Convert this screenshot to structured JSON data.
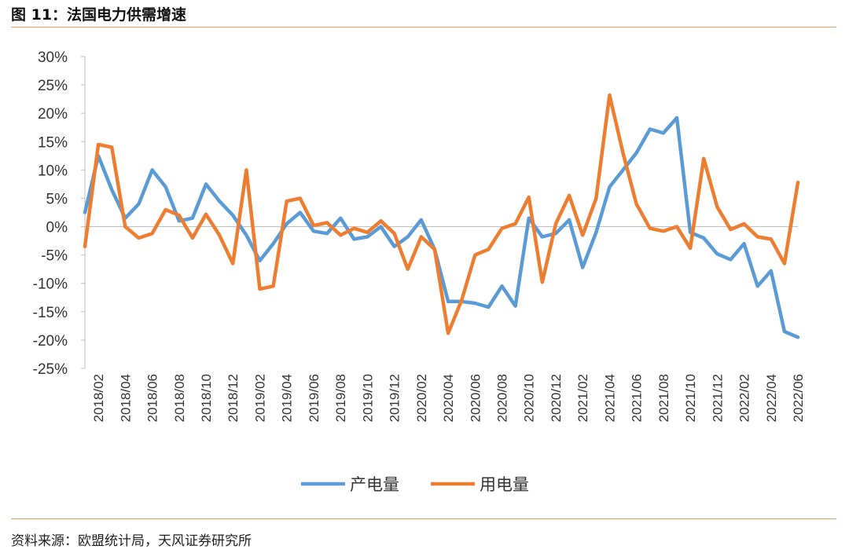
{
  "header": {
    "title": "图 11：法国电力供需增速"
  },
  "footer": {
    "source": "资料来源：欧盟统计局，天风证券研究所"
  },
  "colors": {
    "accent_rule": "#e8a060"
  },
  "chart_data": {
    "type": "line",
    "title": "",
    "xlabel": "",
    "ylabel": "",
    "ylim": [
      -25,
      30
    ],
    "y_ticks": [
      30,
      25,
      20,
      15,
      10,
      5,
      0,
      -5,
      -10,
      -15,
      -20,
      -25
    ],
    "y_tick_labels": [
      "30%",
      "25%",
      "20%",
      "15%",
      "10%",
      "5%",
      "0%",
      "-5%",
      "-10%",
      "-15%",
      "-20%",
      "-25%"
    ],
    "grid": false,
    "legend_position": "bottom",
    "x": [
      "2018/01",
      "2018/02",
      "2018/03",
      "2018/04",
      "2018/05",
      "2018/06",
      "2018/07",
      "2018/08",
      "2018/09",
      "2018/10",
      "2018/11",
      "2018/12",
      "2019/01",
      "2019/02",
      "2019/03",
      "2019/04",
      "2019/05",
      "2019/06",
      "2019/07",
      "2019/08",
      "2019/09",
      "2019/10",
      "2019/11",
      "2019/12",
      "2020/01",
      "2020/02",
      "2020/03",
      "2020/04",
      "2020/05",
      "2020/06",
      "2020/07",
      "2020/08",
      "2020/09",
      "2020/10",
      "2020/11",
      "2020/12",
      "2021/01",
      "2021/02",
      "2021/03",
      "2021/04",
      "2021/05",
      "2021/06",
      "2021/07",
      "2021/08",
      "2021/09",
      "2021/10",
      "2021/11",
      "2021/12",
      "2022/01",
      "2022/02",
      "2022/03",
      "2022/04",
      "2022/05",
      "2022/06"
    ],
    "x_tick_labels": [
      "2018/02",
      "2018/04",
      "2018/06",
      "2018/08",
      "2018/10",
      "2018/12",
      "2019/02",
      "2019/04",
      "2019/06",
      "2019/08",
      "2019/10",
      "2019/12",
      "2020/02",
      "2020/04",
      "2020/06",
      "2020/08",
      "2020/10",
      "2020/12",
      "2021/02",
      "2021/04",
      "2021/06",
      "2021/08",
      "2021/10",
      "2021/12",
      "2022/02",
      "2022/04",
      "2022/06"
    ],
    "series": [
      {
        "name": "产电量",
        "color": "#5b9bd5",
        "values": [
          2.5,
          12.5,
          6.5,
          1.5,
          4.0,
          10.0,
          7.0,
          1.0,
          1.5,
          7.5,
          4.5,
          2.0,
          -1.5,
          -6.0,
          -3.0,
          0.5,
          2.5,
          -0.8,
          -1.2,
          1.5,
          -2.2,
          -1.8,
          0.0,
          -3.5,
          -1.8,
          1.2,
          -4.0,
          -13.2,
          -13.2,
          -13.5,
          -14.2,
          -10.5,
          -14.0,
          1.5,
          -1.8,
          -1.2,
          1.2,
          -7.2,
          -1.0,
          7.0,
          10.0,
          13.0,
          17.2,
          16.5,
          19.2,
          -1.0,
          -2.0,
          -4.8,
          -5.8,
          -3.0,
          -10.5,
          -7.8,
          -18.5,
          -19.5
        ]
      },
      {
        "name": "用电量",
        "color": "#ed7d31",
        "values": [
          -3.5,
          14.5,
          14.0,
          0.0,
          -2.0,
          -1.2,
          3.0,
          2.0,
          -2.0,
          2.2,
          -1.5,
          -6.5,
          10.0,
          -11.0,
          -10.5,
          4.5,
          5.0,
          0.2,
          0.7,
          -1.5,
          -0.3,
          -1.0,
          1.0,
          -1.2,
          -7.5,
          -1.8,
          -4.0,
          -18.8,
          -13.0,
          -5.0,
          -4.0,
          -0.3,
          0.5,
          5.2,
          -9.8,
          0.5,
          5.5,
          -1.5,
          5.0,
          23.2,
          13.0,
          4.0,
          -0.3,
          -0.8,
          0.0,
          -3.8,
          12.0,
          3.5,
          -0.5,
          0.5,
          -1.8,
          -2.2,
          -6.5,
          7.8
        ]
      }
    ]
  }
}
